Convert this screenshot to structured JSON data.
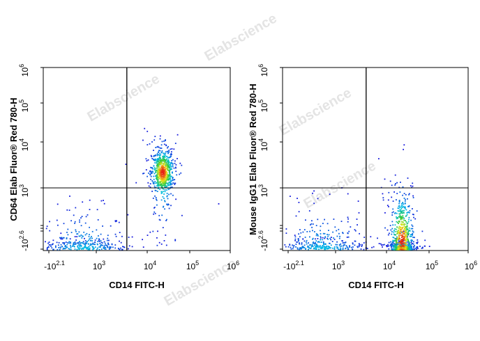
{
  "watermark": {
    "text": "Elabscience",
    "reg": "®"
  },
  "chart_data": [
    {
      "type": "scatter",
      "title": "",
      "xlabel": "CD14 FITC-H",
      "ylabel": "CD64 Elab Fluor® Red 780-H",
      "x_ticks": [
        {
          "base": "-10",
          "exp": "2.1"
        },
        {
          "base": "10",
          "exp": "3"
        },
        {
          "base": "10",
          "exp": "4"
        },
        {
          "base": "10",
          "exp": "5"
        },
        {
          "base": "10",
          "exp": "6"
        }
      ],
      "y_ticks": [
        {
          "base": "-10",
          "exp": "2.6"
        },
        {
          "base": "10",
          "exp": "3"
        },
        {
          "base": "10",
          "exp": "4"
        },
        {
          "base": "10",
          "exp": "5"
        },
        {
          "base": "10",
          "exp": "6"
        }
      ],
      "gates": {
        "x": 3.6,
        "y": 3.0
      },
      "populations": [
        {
          "cx": 2.75,
          "cy": 2.55,
          "sx": 0.42,
          "sy": 0.16,
          "n": 330
        },
        {
          "cx": 4.35,
          "cy": 3.35,
          "sx": 0.13,
          "sy": 0.25,
          "n": 650
        },
        {
          "cx": 4.35,
          "cy": 3.35,
          "sx": 0.26,
          "sy": 0.45,
          "n": 90
        }
      ],
      "outliers": [
        {
          "x": 4.7,
          "y": 4.2
        },
        {
          "x": 5.7,
          "y": 2.9
        },
        {
          "x": 1.6,
          "y": 1.8
        }
      ]
    },
    {
      "type": "scatter",
      "title": "",
      "xlabel": "CD14 FITC-H",
      "ylabel": "Mouse IgG1 Elab Fluor® Red 780-H",
      "x_ticks": [
        {
          "base": "-10",
          "exp": "2.1"
        },
        {
          "base": "10",
          "exp": "3"
        },
        {
          "base": "10",
          "exp": "4"
        },
        {
          "base": "10",
          "exp": "5"
        },
        {
          "base": "10",
          "exp": "6"
        }
      ],
      "y_ticks": [
        {
          "base": "-10",
          "exp": "2.6"
        },
        {
          "base": "10",
          "exp": "3"
        },
        {
          "base": "10",
          "exp": "4"
        },
        {
          "base": "10",
          "exp": "5"
        },
        {
          "base": "10",
          "exp": "6"
        }
      ],
      "gates": {
        "x": 3.6,
        "y": 3.0
      },
      "populations": [
        {
          "cx": 2.75,
          "cy": 2.55,
          "sx": 0.42,
          "sy": 0.16,
          "n": 330
        },
        {
          "cx": 4.35,
          "cy": 2.65,
          "sx": 0.13,
          "sy": 0.15,
          "n": 650
        },
        {
          "cx": 4.35,
          "cy": 2.65,
          "sx": 0.26,
          "sy": 0.28,
          "n": 90
        }
      ],
      "outliers": [
        {
          "x": 4.4,
          "y": 3.95
        },
        {
          "x": 4.38,
          "y": 3.85
        },
        {
          "x": 4.6,
          "y": 3.05
        }
      ]
    }
  ]
}
